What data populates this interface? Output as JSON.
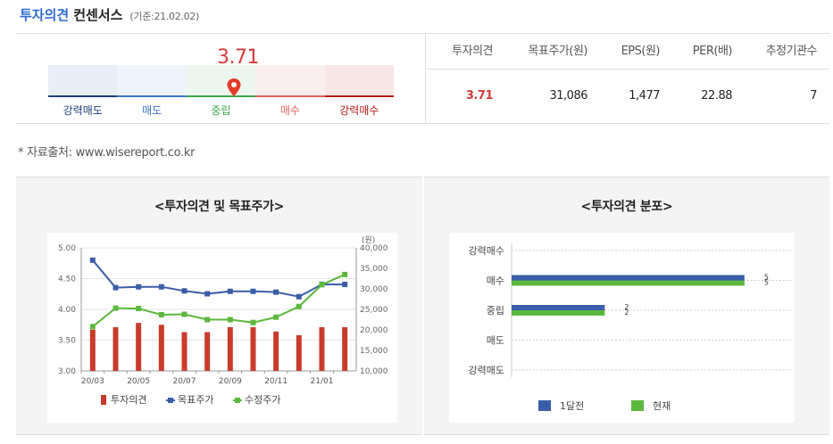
{
  "header": {
    "title_blue": "투자의견",
    "title_dark": "컨센서스",
    "date": "(기준:21.02.02)"
  },
  "gauge": {
    "value": "3.71",
    "labels": [
      "강력매도",
      "매도",
      "중립",
      "매수",
      "강력매수"
    ],
    "colors": [
      "#1f3f7a",
      "#3d73c5",
      "#38a84a",
      "#e26161",
      "#b81818"
    ]
  },
  "stats": {
    "headers": [
      "투자의견",
      "목표주가(원)",
      "EPS(원)",
      "PER(배)",
      "추정기관수"
    ],
    "values": [
      "3.71",
      "31,086",
      "1,477",
      "22.88",
      "7"
    ]
  },
  "source": "* 자료출처: www.wisereport.co.kr",
  "chart_data": [
    {
      "type": "bar",
      "title": "<투자의견 및 목표주가>",
      "categories": [
        "20/03",
        "20/04",
        "20/05",
        "20/06",
        "20/07",
        "20/08",
        "20/09",
        "20/10",
        "20/11",
        "20/12",
        "21/01",
        "21/02"
      ],
      "x_tick_labels": [
        "20/03",
        "20/05",
        "20/07",
        "20/09",
        "20/11",
        "21/01"
      ],
      "y_left": {
        "min": 3.0,
        "max": 5.0,
        "ticks": [
          "5.00",
          "4.50",
          "4.00",
          "3.50",
          "3.00"
        ]
      },
      "y_right": {
        "unit": "(원)",
        "min": 10000,
        "max": 40000,
        "ticks": [
          "40,000",
          "35,000",
          "30,000",
          "25,000",
          "20,000",
          "15,000",
          "10,000"
        ]
      },
      "series": [
        {
          "name": "투자의견",
          "axis": "left",
          "kind": "bar",
          "color": "#c83b2b",
          "values": [
            3.67,
            3.71,
            3.78,
            3.75,
            3.63,
            3.63,
            3.71,
            3.71,
            3.64,
            3.58,
            3.71,
            3.71
          ]
        },
        {
          "name": "목표주가",
          "axis": "right",
          "kind": "line",
          "color": "#3a5da8",
          "values": [
            37000,
            30300,
            30500,
            30500,
            29500,
            28800,
            29400,
            29400,
            29200,
            28100,
            31100,
            31086
          ]
        },
        {
          "name": "수정주가",
          "axis": "right",
          "kind": "line",
          "color": "#5cb83d",
          "values": [
            20800,
            25300,
            25200,
            23700,
            23800,
            22500,
            22500,
            21800,
            23100,
            25700,
            31000,
            33500
          ]
        }
      ]
    },
    {
      "type": "bar",
      "orientation": "horizontal",
      "title": "<투자의견 분포>",
      "categories": [
        "강력매수",
        "매수",
        "중립",
        "매도",
        "강력매도"
      ],
      "xlim": [
        0,
        6
      ],
      "series": [
        {
          "name": "1달전",
          "color": "#3a5da8",
          "values": [
            0,
            5,
            2,
            0,
            0
          ]
        },
        {
          "name": "현재",
          "color": "#5cb83d",
          "values": [
            0,
            5,
            2,
            0,
            0
          ]
        }
      ]
    }
  ]
}
